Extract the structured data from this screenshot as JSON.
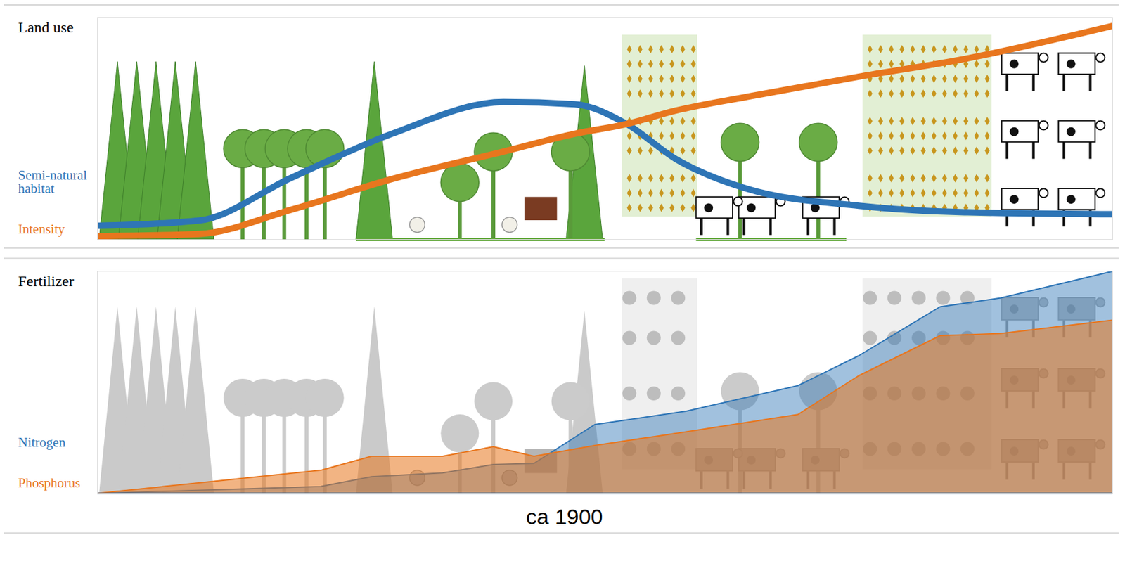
{
  "chart_data": [
    {
      "type": "line",
      "title": "Land use",
      "x": [
        0,
        10,
        19,
        29,
        40,
        47,
        52,
        57,
        64,
        75,
        85,
        100
      ],
      "series": [
        {
          "name": "Semi-natural habitat",
          "color": "#2e75b6",
          "values": [
            6.5,
            9,
            29,
            50,
            65,
            64,
            55,
            38,
            24,
            16,
            13,
            12
          ]
        },
        {
          "name": "Intensity",
          "color": "#e8761e",
          "values": [
            1.6,
            2.6,
            14,
            28.6,
            41.6,
            50,
            54.5,
            61,
            67.5,
            77,
            85,
            101
          ]
        }
      ],
      "xlim": [
        0,
        100
      ],
      "ylim": [
        0,
        105
      ],
      "tick_labels": false,
      "legend": "left"
    },
    {
      "type": "area",
      "title": "Fertilizer",
      "x": [
        0,
        22,
        27,
        34,
        39,
        43,
        49,
        58,
        69,
        75,
        83,
        89,
        100
      ],
      "series": [
        {
          "name": "Nitrogen",
          "color": "#2e75b6",
          "values": [
            0,
            3.1,
            7.5,
            9.2,
            13,
            13.5,
            31,
            37,
            48.5,
            62,
            84,
            88,
            100
          ]
        },
        {
          "name": "Phosphorus",
          "color": "#e8761e",
          "values": [
            0,
            10.4,
            16.7,
            16.7,
            21,
            16.7,
            21.6,
            27.7,
            35.5,
            53,
            71,
            72,
            78
          ]
        }
      ],
      "xlim": [
        0,
        100
      ],
      "ylim": [
        0,
        100
      ],
      "tick_labels": false,
      "legend": "left",
      "annotations": [
        {
          "text": "ca 1900",
          "x": 46
        }
      ]
    }
  ]
}
